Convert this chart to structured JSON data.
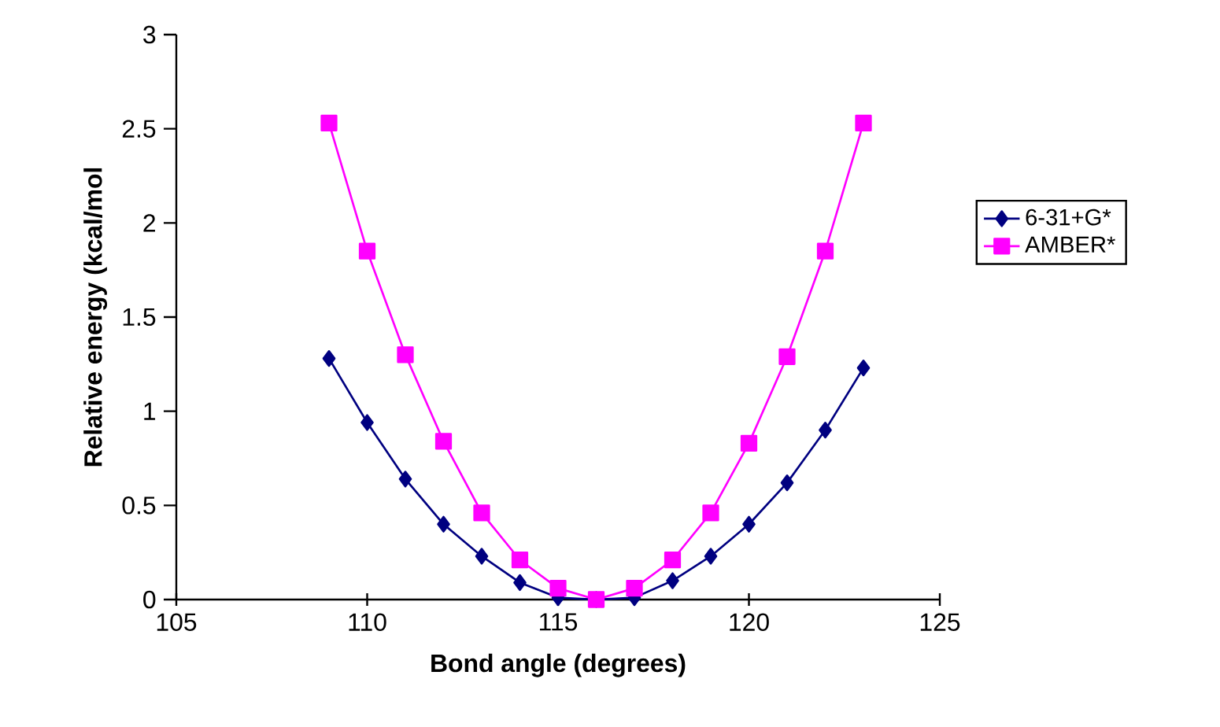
{
  "chart_data": {
    "type": "line",
    "xlabel": "Bond angle (degrees)",
    "ylabel": "Relative energy (kcal/mol",
    "x": [
      109,
      110,
      111,
      112,
      113,
      114,
      115,
      116,
      117,
      118,
      119,
      120,
      121,
      122,
      123
    ],
    "series": [
      {
        "name": "6-31+G*",
        "color": "#000080",
        "marker": "diamond",
        "values": [
          1.28,
          0.94,
          0.64,
          0.4,
          0.23,
          0.09,
          0.01,
          0,
          0.01,
          0.1,
          0.23,
          0.4,
          0.62,
          0.9,
          1.23
        ]
      },
      {
        "name": "AMBER*",
        "color": "#ff00ff",
        "marker": "square",
        "values": [
          2.53,
          1.85,
          1.3,
          0.84,
          0.46,
          0.21,
          0.06,
          0,
          0.06,
          0.21,
          0.46,
          0.83,
          1.29,
          1.85,
          2.53
        ]
      }
    ],
    "xlim": [
      105,
      125
    ],
    "xticks": [
      105,
      110,
      115,
      120,
      125
    ],
    "ylim": [
      0,
      3
    ],
    "yticks": [
      0,
      0.5,
      1,
      1.5,
      2,
      2.5,
      3
    ],
    "grid": false,
    "legend": "right"
  }
}
